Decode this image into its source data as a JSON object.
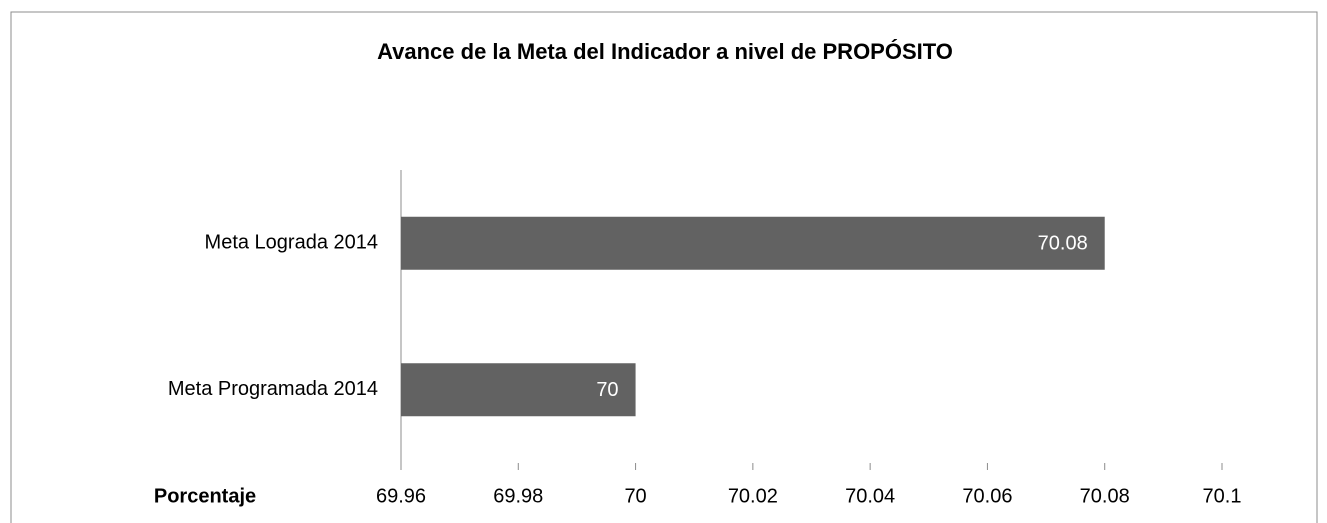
{
  "chart_data": {
    "type": "barh",
    "title": "Avance de la Meta del Indicador a nivel de PROPÓSITO",
    "categories": [
      "Meta Lograda 2014",
      "Meta Programada 2014"
    ],
    "values": [
      70.08,
      70
    ],
    "color": "#626262",
    "xlabel": "Porcentaje",
    "xlim": [
      69.96,
      70.1
    ],
    "xticks": [
      69.96,
      69.98,
      70,
      70.02,
      70.04,
      70.06,
      70.08,
      70.1
    ]
  }
}
